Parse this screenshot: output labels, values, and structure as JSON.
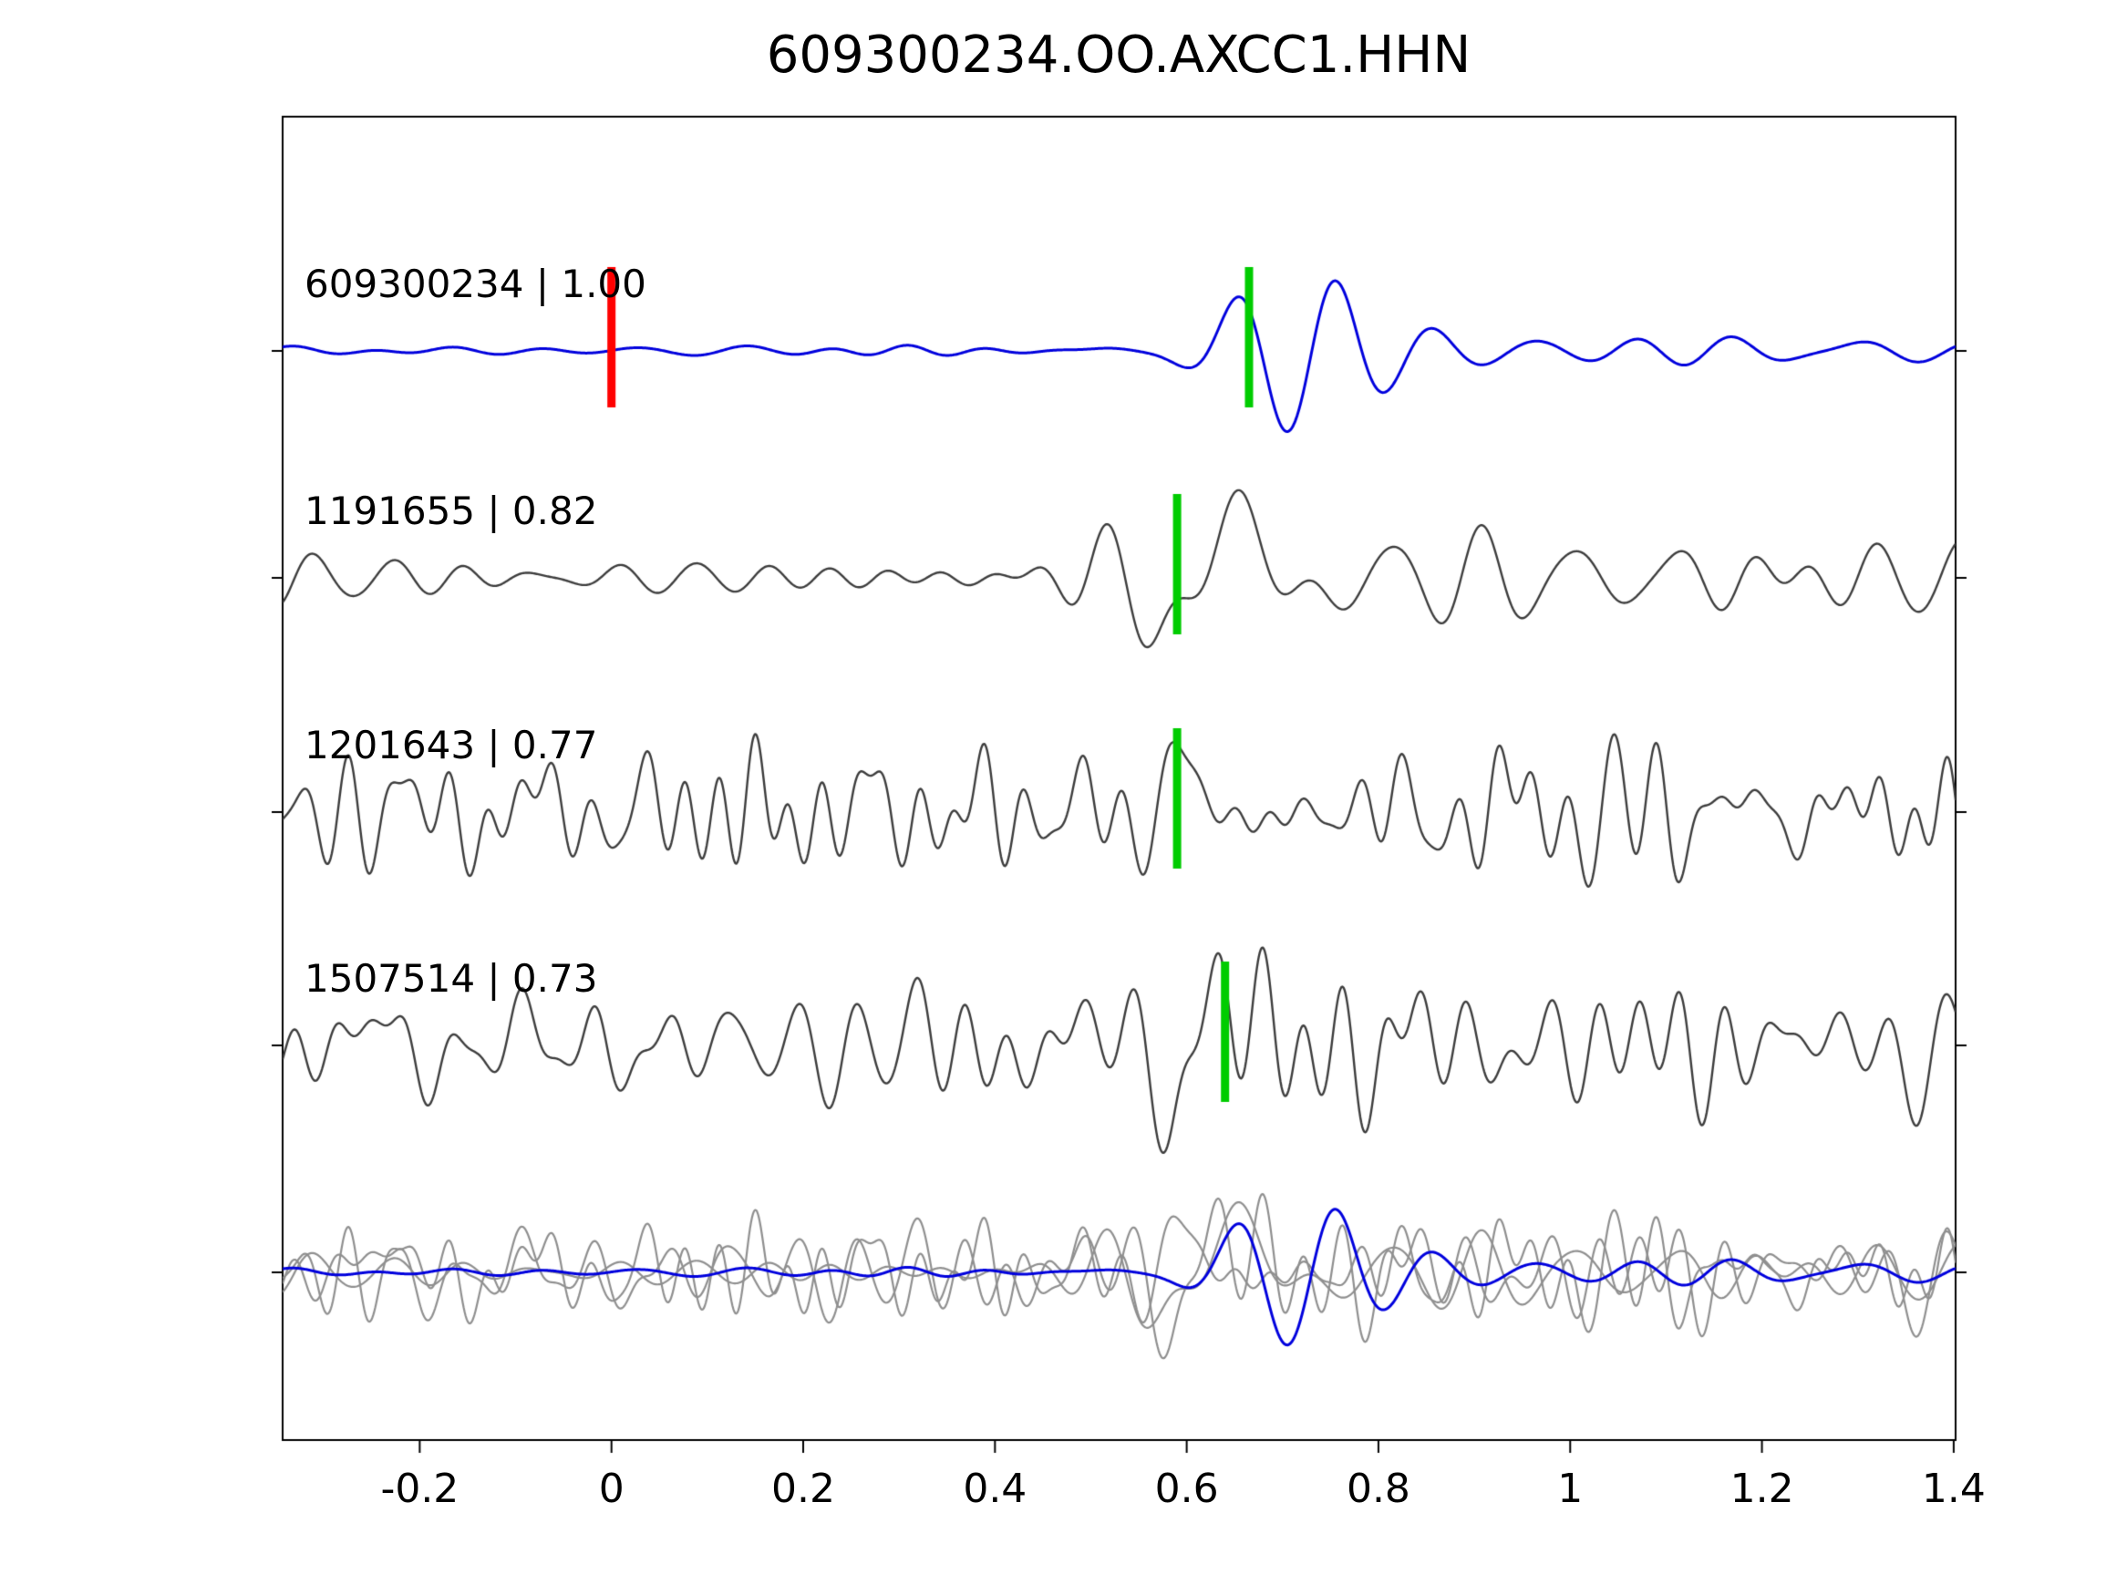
{
  "title": "609300234.OO.AXCC1.HHN",
  "chart_data": {
    "type": "line",
    "title": "609300234.OO.AXCC1.HHN",
    "xlabel": "",
    "ylabel": "",
    "xlim": [
      -0.343,
      1.402
    ],
    "x_ticks": [
      -0.2,
      0,
      0.2,
      0.4,
      0.6,
      0.8,
      1,
      1.2,
      1.4
    ],
    "x_tick_labels": [
      "-0.2",
      "0",
      "0.2",
      "0.4",
      "0.6",
      "0.8",
      "1",
      "1.2",
      "1.4"
    ],
    "grid": false,
    "legend": "none",
    "colors": {
      "template_trace": "#0000dd",
      "match_trace": "#3d3d3d",
      "overlay_gray": "#8f8f8f",
      "pick_red": "#ff0000",
      "pick_green": "#00cc00",
      "axis": "#000000"
    },
    "traces": [
      {
        "label": "609300234 | 1.00",
        "event_id": "609300234",
        "correlation": 1.0,
        "color_key": "template_trace",
        "red_pick_x": 0.0,
        "green_pick_x": 0.665,
        "synth": {
          "seed": 101,
          "bands": [
            {
              "amp": 3,
              "fmin": 6,
              "fmax": 16,
              "k": 10
            },
            {
              "amp": 9,
              "fmin": 8,
              "fmax": 13,
              "k": 7,
              "start": 0.17,
              "rise": 0.2
            }
          ],
          "wavelet": {
            "amp": 95,
            "t0": 0.705,
            "sigma": 0.1,
            "freq": 9.5,
            "phase": -1.571
          }
        }
      },
      {
        "label": "1191655 | 0.82",
        "event_id": "1191655",
        "correlation": 0.82,
        "color_key": "match_trace",
        "red_pick_x": null,
        "green_pick_x": 0.59,
        "synth": {
          "seed": 202,
          "bands": [
            {
              "amp": 13,
              "fmin": 9,
              "fmax": 18,
              "k": 14
            },
            {
              "amp": 16,
              "fmin": 8,
              "fmax": 12,
              "k": 6,
              "gauss": [
                0.9,
                0.4
              ]
            }
          ],
          "wavelet": {
            "amp": 95,
            "t0": 0.635,
            "sigma": 0.085,
            "freq": 6.5,
            "phase": 0.754
          }
        }
      },
      {
        "label": "1201643 | 0.77",
        "event_id": "1201643",
        "correlation": 0.77,
        "color_key": "match_trace",
        "red_pick_x": null,
        "green_pick_x": 0.59,
        "synth": {
          "seed": 303,
          "bands": [
            {
              "amp": 30,
              "fmin": 14,
              "fmax": 30,
              "k": 24
            },
            {
              "amp": 14,
              "fmin": 5,
              "fmax": 10,
              "k": 5
            }
          ],
          "wavelet": {
            "amp": 70,
            "t0": 0.59,
            "sigma": 0.04,
            "freq": 9,
            "phase": 1.571
          }
        }
      },
      {
        "label": "1507514 | 0.73",
        "event_id": "1507514",
        "correlation": 0.73,
        "color_key": "match_trace",
        "red_pick_x": null,
        "green_pick_x": 0.64,
        "synth": {
          "seed": 404,
          "bands": [
            {
              "amp": 30,
              "fmin": 12,
              "fmax": 26,
              "k": 22
            },
            {
              "amp": 13,
              "fmin": 5,
              "fmax": 9,
              "k": 5
            }
          ],
          "wavelet": {
            "amp": 70,
            "t0": 0.62,
            "sigma": 0.045,
            "freq": 8,
            "phase": 0.5
          }
        }
      }
    ],
    "overlay_row": {
      "gray_trace_indices": [
        1,
        2,
        3
      ],
      "gray_scale": 0.8,
      "blue_trace_index": 0,
      "blue_scale": 0.9
    }
  }
}
